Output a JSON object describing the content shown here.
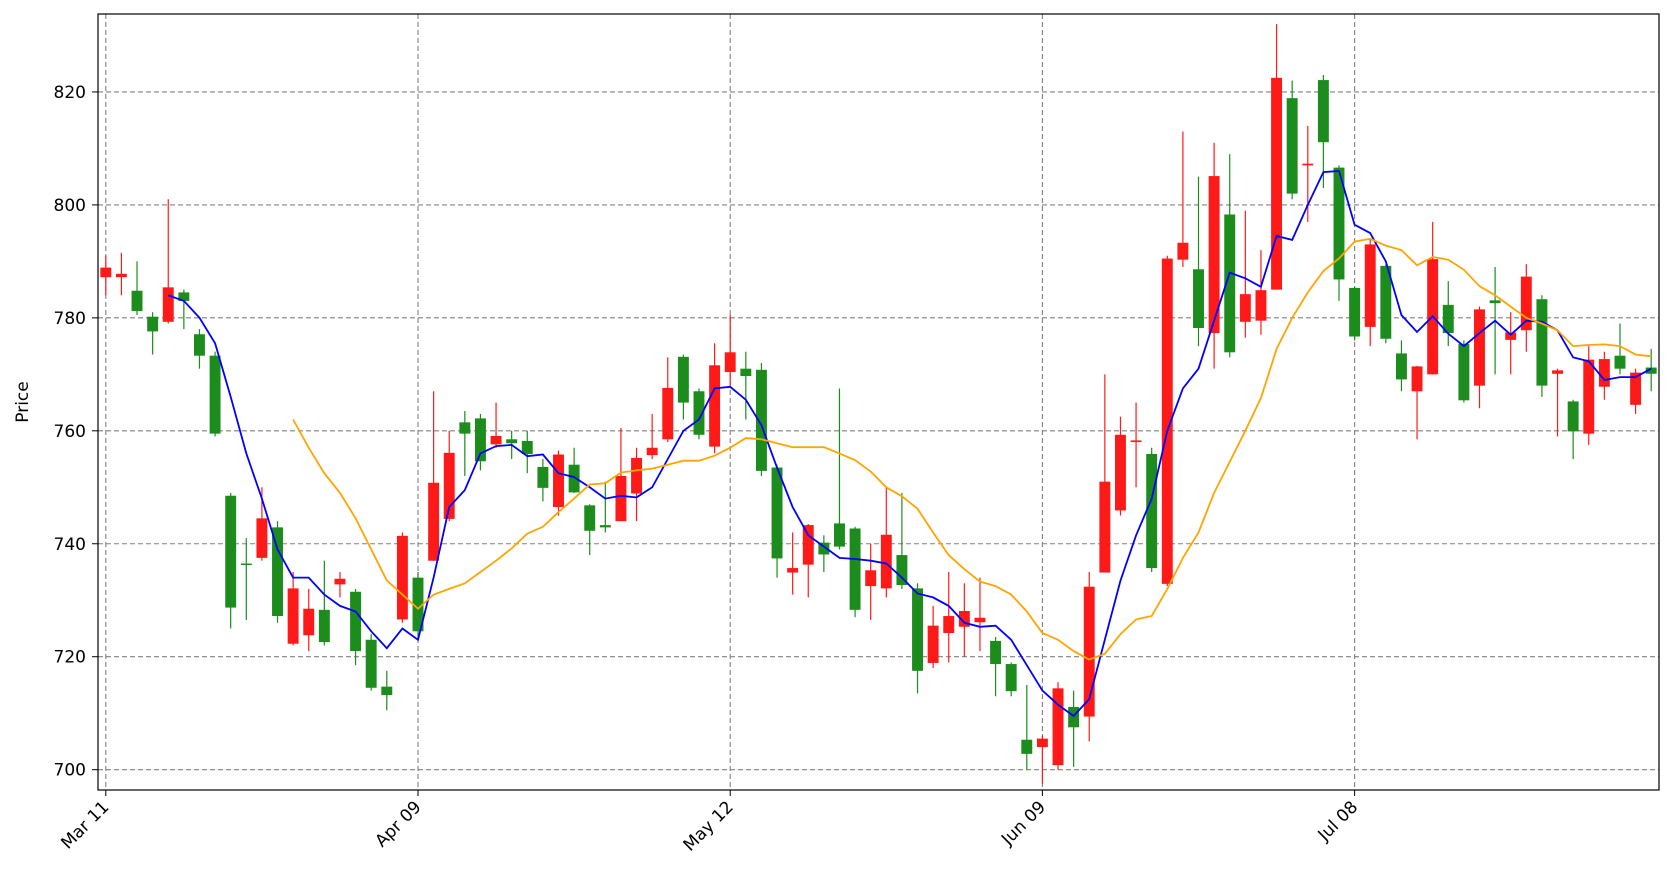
{
  "chart_data": {
    "type": "candlestick",
    "ylabel": "Price",
    "categories": [
      "Mar 11",
      null,
      null,
      null,
      null,
      null,
      null,
      null,
      null,
      null,
      null,
      null,
      null,
      null,
      null,
      null,
      null,
      null,
      null,
      null,
      "Apr 09",
      null,
      null,
      null,
      null,
      null,
      null,
      null,
      null,
      null,
      null,
      null,
      null,
      null,
      null,
      null,
      null,
      null,
      null,
      null,
      "May 12",
      null,
      null,
      null,
      null,
      null,
      null,
      null,
      null,
      null,
      null,
      null,
      null,
      null,
      null,
      null,
      null,
      null,
      null,
      null,
      "Jun 09",
      null,
      null,
      null,
      null,
      null,
      null,
      null,
      null,
      null,
      null,
      null,
      null,
      null,
      null,
      null,
      null,
      null,
      null,
      null,
      "Jul 08",
      null,
      null,
      null,
      null,
      null,
      null,
      null,
      null,
      null,
      null,
      null,
      null,
      null,
      null,
      null,
      null,
      null,
      null,
      null
    ],
    "open": [
      787.2,
      787.2,
      784.8,
      780.2,
      779.3,
      784.5,
      777.1,
      773.3,
      748.5,
      736.5,
      737.5,
      742.9,
      722.3,
      723.8,
      728.3,
      732.8,
      731.5,
      723,
      714.7,
      726.6,
      734,
      737,
      744.4,
      761.5,
      762.2,
      757.6,
      758.5,
      758.2,
      753.6,
      746.5,
      754,
      746.8,
      743.3,
      744,
      748.9,
      755.7,
      758.5,
      773.1,
      767,
      757.2,
      770.4,
      771,
      770.8,
      753.5,
      734.9,
      736.3,
      740.2,
      743.6,
      742.7,
      732.5,
      732.1,
      738,
      732.1,
      718.9,
      724.2,
      725.3,
      726.1,
      722.8,
      718.7,
      705.3,
      704,
      700.8,
      711.1,
      709.4,
      734.9,
      745.9,
      758,
      755.9,
      732.9,
      790.3,
      788.6,
      777.3,
      798.3,
      779.3,
      779.5,
      785,
      818.9,
      807,
      822.1,
      806.6,
      785.3,
      778.4,
      789.2,
      773.7,
      767,
      770,
      782.3,
      775.4,
      768,
      783.1,
      776.1,
      777.8,
      783.3,
      770.1,
      765.2,
      759.5,
      767.8,
      773.3,
      764.6,
      771.2
    ],
    "high": [
      791,
      791.5,
      790,
      781,
      801,
      785,
      778,
      774,
      749,
      741,
      750,
      744,
      735,
      732,
      737,
      735,
      732,
      724,
      717.5,
      742,
      735,
      767,
      760,
      763.5,
      763,
      765,
      760,
      760,
      755,
      756.5,
      757,
      747,
      751,
      760.5,
      757,
      763,
      773,
      773.5,
      767.5,
      775.5,
      780.5,
      774,
      772,
      754,
      742,
      743.5,
      741.5,
      767.5,
      743,
      740,
      750,
      749,
      733,
      729,
      735,
      733,
      734,
      723.5,
      719,
      715,
      706,
      715.5,
      714,
      735,
      770,
      762.5,
      765,
      757,
      791,
      813,
      805,
      811,
      809,
      799,
      792,
      832,
      822,
      814,
      823,
      807,
      785.5,
      794,
      789.5,
      776,
      771.5,
      797,
      786.5,
      776,
      782,
      789,
      781,
      789.5,
      784,
      771,
      765.5,
      775,
      774,
      779,
      771,
      774.5
    ],
    "low": [
      784,
      784,
      780.5,
      773.5,
      779,
      778,
      771,
      759,
      725,
      726.5,
      737,
      726,
      722,
      721,
      722,
      730.5,
      718.5,
      714,
      710.5,
      726,
      723,
      737,
      744,
      752,
      753,
      757,
      755,
      752.5,
      747.5,
      745,
      749,
      738,
      742,
      744,
      744,
      755,
      758,
      762,
      758.5,
      756,
      768,
      762,
      752,
      734,
      731,
      730.5,
      735,
      739,
      727,
      726.5,
      730.5,
      732,
      713.5,
      718,
      719,
      720,
      721,
      713,
      713,
      700,
      697.5,
      700,
      700.5,
      705,
      735,
      745,
      750,
      735,
      732.5,
      789,
      775,
      771,
      773,
      776.5,
      777,
      785,
      801,
      797,
      803,
      783,
      776,
      775,
      775.5,
      767,
      758.5,
      770,
      775,
      765,
      764,
      770,
      770,
      774,
      766,
      759,
      755,
      757.5,
      765.5,
      770,
      763,
      767
    ],
    "close": [
      788.9,
      787.8,
      781.2,
      777.6,
      785.4,
      783,
      773.3,
      759.5,
      728.7,
      736.3,
      744.5,
      727.2,
      732.1,
      728.5,
      722.6,
      733.8,
      721,
      714.5,
      713.2,
      741.4,
      724.5,
      750.8,
      756.1,
      759.5,
      754.6,
      759.1,
      757.8,
      755.9,
      749.9,
      755.8,
      749.1,
      742.3,
      742.9,
      752,
      755.2,
      757,
      767.6,
      765,
      759.3,
      771.6,
      773.9,
      769.7,
      752.9,
      737.4,
      735.7,
      743.3,
      738.1,
      739.5,
      728.3,
      735.3,
      741.6,
      732.7,
      717.5,
      725.5,
      727.2,
      728.1,
      726.9,
      718.7,
      713.9,
      702.8,
      705.5,
      714.4,
      707.5,
      732.4,
      751,
      759.3,
      758.3,
      735.7,
      790.5,
      793.3,
      778.2,
      805.1,
      773.9,
      784.2,
      784.9,
      822.5,
      802,
      807.3,
      811.1,
      786.8,
      776.7,
      793,
      776.3,
      769.1,
      771.4,
      790.4,
      777.3,
      765.4,
      781.5,
      782.6,
      777.4,
      787.3,
      768,
      770.7,
      759.9,
      772.6,
      772.7,
      771,
      770.3,
      770.1
    ],
    "up_color": "#ff1a1a",
    "down_color": "#1c8c1c",
    "lines": [
      {
        "color": "#0000ff",
        "values": [
          null,
          null,
          null,
          null,
          784,
          783,
          780,
          775.5,
          766,
          756,
          748,
          739,
          734,
          734,
          731,
          729,
          728,
          724.5,
          721.5,
          725,
          723,
          734,
          746.5,
          749.5,
          756,
          757.3,
          757.5,
          755.5,
          755.8,
          752.5,
          751.8,
          750,
          748,
          748.5,
          748.2,
          750,
          755,
          760,
          762,
          767.5,
          767.8,
          765.5,
          761,
          753.5,
          746.5,
          741.5,
          739.5,
          737.5,
          737.3,
          737,
          736.5,
          734,
          731.2,
          730.5,
          729,
          726,
          725.3,
          725.5,
          723,
          718.5,
          714,
          711.5,
          709.5,
          712.5,
          723,
          733.5,
          741.5,
          748,
          760,
          767.5,
          771,
          779.5,
          788,
          787,
          785.5,
          794.5,
          793.8,
          800,
          805.8,
          806,
          796.5,
          795,
          790,
          780.5,
          777.5,
          780.3,
          777.2,
          775,
          777.3,
          779.5,
          777,
          779.5,
          779.3,
          777.8,
          773,
          772.3,
          769,
          769.5,
          769.5,
          771
        ]
      },
      {
        "color": "#ffa500",
        "values": [
          null,
          null,
          null,
          null,
          null,
          null,
          null,
          null,
          null,
          null,
          null,
          null,
          762,
          757,
          752.5,
          749,
          744.5,
          739,
          733.5,
          731,
          728.5,
          731,
          732,
          733,
          735,
          737,
          739.2,
          741.8,
          743,
          745.6,
          748,
          750.5,
          750.7,
          752.6,
          753,
          753.3,
          754,
          754.7,
          754.7,
          755.6,
          757,
          758.7,
          758.5,
          757.8,
          757.1,
          757.1,
          757.1,
          756,
          754.8,
          752.8,
          750,
          748.4,
          746.2,
          742,
          738,
          735.5,
          733.3,
          732.5,
          731,
          728,
          724.2,
          723,
          721,
          719.5,
          720.5,
          724,
          726.6,
          727.2,
          732,
          737.5,
          742,
          749,
          754.5,
          760,
          765.8,
          774.5,
          780,
          784.5,
          788.3,
          790.5,
          793.5,
          794,
          792.8,
          792,
          789.3,
          790.8,
          790.3,
          788.5,
          785.6,
          784,
          782,
          780,
          779,
          777.8,
          775,
          775.2,
          775.3,
          775,
          773.5,
          773.2
        ]
      }
    ],
    "ylim": [
      696.4,
      833.8
    ],
    "yticks": [
      700,
      720,
      740,
      760,
      780,
      800,
      820
    ],
    "grid": true
  }
}
